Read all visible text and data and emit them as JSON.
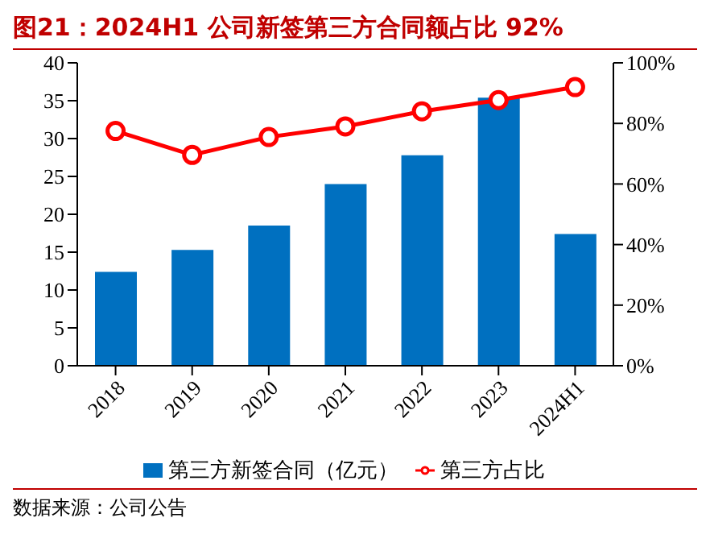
{
  "chart_data": {
    "type": "bar",
    "title": "图21：2024H1 公司新签第三方合同额占比 92%",
    "categories": [
      "2018",
      "2019",
      "2020",
      "2021",
      "2022",
      "2023",
      "2024H1"
    ],
    "series": [
      {
        "name": "第三方新签合同（亿元）",
        "color": "#0070c0",
        "values": [
          12.4,
          15.3,
          18.5,
          24.0,
          27.8,
          35.4,
          17.4
        ]
      },
      {
        "name": "第三方占比",
        "type": "line",
        "axis": "y2",
        "color": "#ff0000",
        "values": [
          77.5,
          69.6,
          75.5,
          79,
          84,
          87.7,
          92
        ]
      }
    ],
    "ylim": [
      0,
      40
    ],
    "yticks": [
      0,
      5,
      10,
      15,
      20,
      25,
      30,
      35,
      40
    ],
    "y2lim": [
      0,
      100
    ],
    "y2ticks": [
      {
        "value": 0,
        "label": "0%"
      },
      {
        "value": 20,
        "label": "20%"
      },
      {
        "value": 40,
        "label": "40%"
      },
      {
        "value": 60,
        "label": "60%"
      },
      {
        "value": 80,
        "label": "80%"
      },
      {
        "value": 100,
        "label": "100%"
      }
    ],
    "grid": false,
    "legend": "bottom",
    "marker": "circle",
    "line_style": "solid",
    "annotations": [
      "数据来源：公司公告"
    ]
  }
}
